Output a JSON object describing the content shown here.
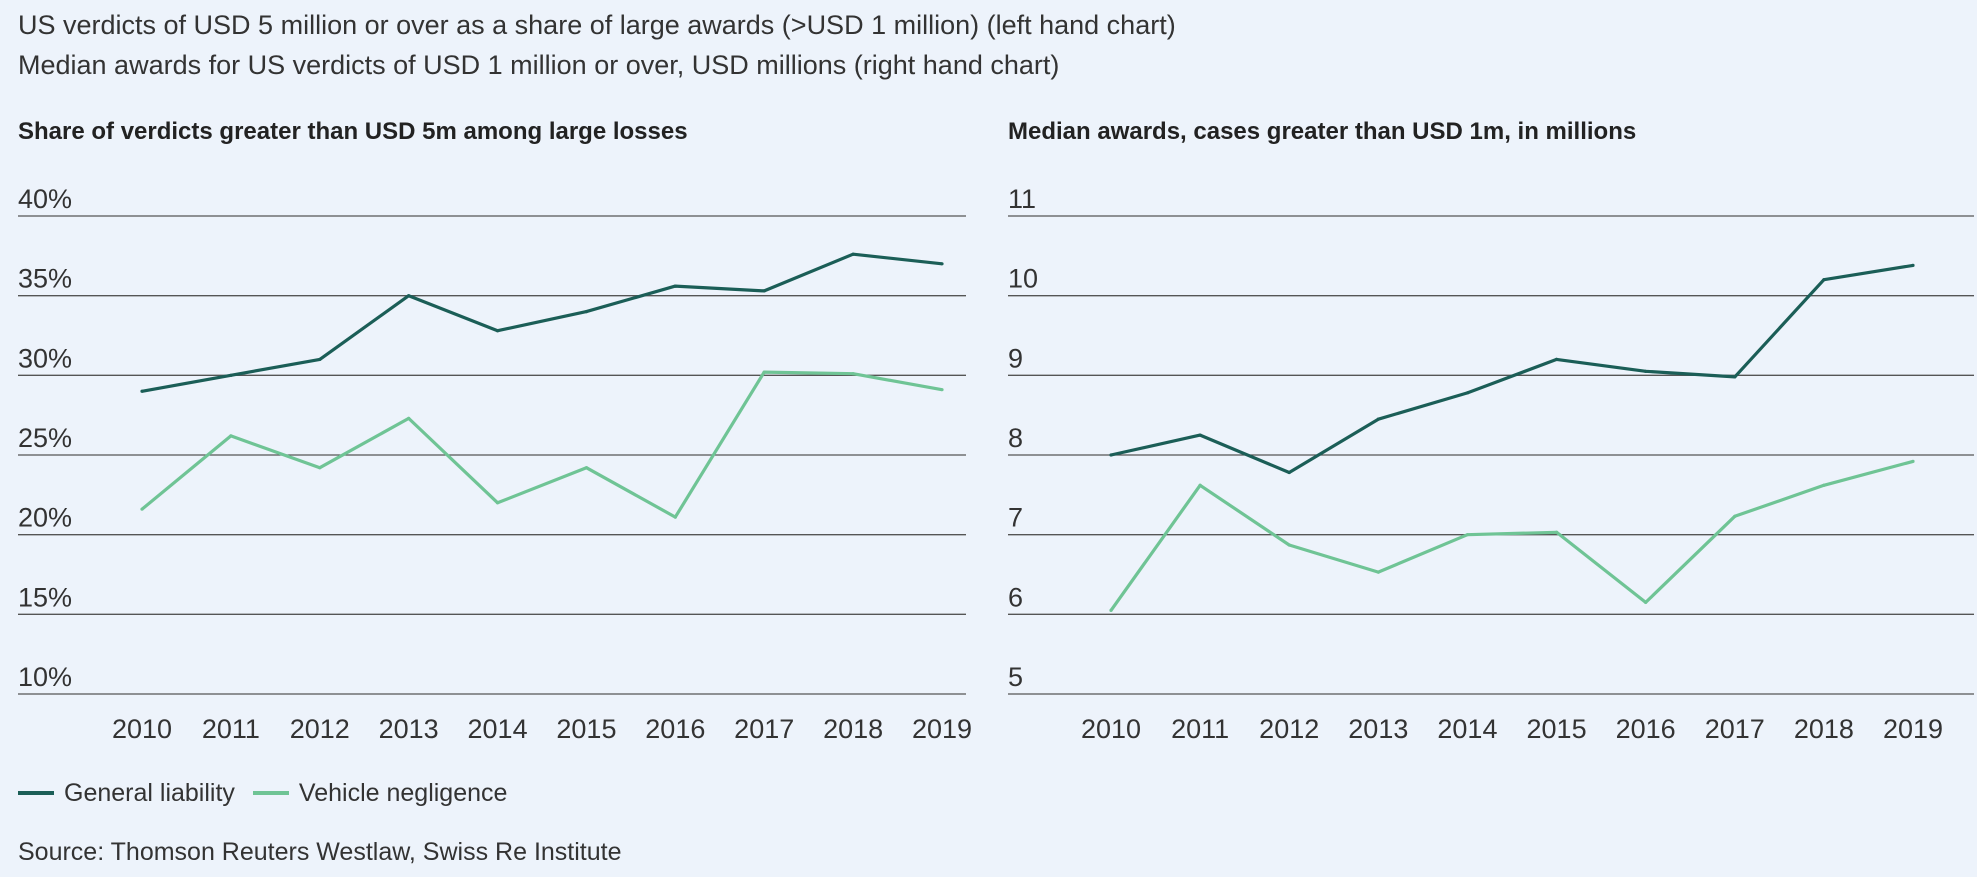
{
  "header": {
    "line1": "US verdicts of USD 5 million or over as a share of large awards (>USD 1 million) (left hand chart)",
    "line2": "Median awards for US verdicts of USD 1 million or over, USD millions (right hand chart)"
  },
  "colors": {
    "general_liability": "#1b5e57",
    "vehicle_negligence": "#6fc495",
    "gridline": "#555555"
  },
  "legend": {
    "general_liability": "General liability",
    "vehicle_negligence": "Vehicle negligence"
  },
  "source": "Source: Thomson Reuters Westlaw, Swiss Re Institute",
  "chart_data": [
    {
      "type": "line",
      "title": "Share of verdicts greater than USD 5m among large losses",
      "categories": [
        "2010",
        "2011",
        "2012",
        "2013",
        "2014",
        "2015",
        "2016",
        "2017",
        "2018",
        "2019"
      ],
      "ylim": [
        10,
        40
      ],
      "yticks": [
        10,
        15,
        20,
        25,
        30,
        35,
        40
      ],
      "ytick_labels": [
        "10%",
        "15%",
        "20%",
        "25%",
        "30%",
        "35%",
        "40%"
      ],
      "grid": true,
      "legend_position": "bottom-left",
      "series": [
        {
          "name": "General liability",
          "values": [
            29.0,
            30.0,
            31.0,
            35.0,
            32.8,
            34.0,
            35.6,
            35.3,
            37.6,
            37.0
          ]
        },
        {
          "name": "Vehicle negligence",
          "values": [
            21.6,
            26.2,
            24.2,
            27.3,
            22.0,
            24.2,
            21.1,
            30.2,
            30.1,
            29.1
          ]
        }
      ]
    },
    {
      "type": "line",
      "title": "Median awards, cases greater than USD 1m, in millions",
      "categories": [
        "2010",
        "2011",
        "2012",
        "2013",
        "2014",
        "2015",
        "2016",
        "2017",
        "2018",
        "2019"
      ],
      "ylim": [
        5,
        11
      ],
      "yticks": [
        5,
        6,
        7,
        8,
        9,
        10,
        11
      ],
      "ytick_labels": [
        "5",
        "6",
        "7",
        "8",
        "9",
        "10",
        "11"
      ],
      "grid": true,
      "legend_position": "bottom-left",
      "series": [
        {
          "name": "General liability",
          "values": [
            8.0,
            8.25,
            7.78,
            8.45,
            8.78,
            9.2,
            9.05,
            8.98,
            10.2,
            10.38
          ]
        },
        {
          "name": "Vehicle negligence",
          "values": [
            6.05,
            7.62,
            6.87,
            6.53,
            7.0,
            7.03,
            6.15,
            7.23,
            7.62,
            7.92
          ]
        }
      ]
    }
  ]
}
